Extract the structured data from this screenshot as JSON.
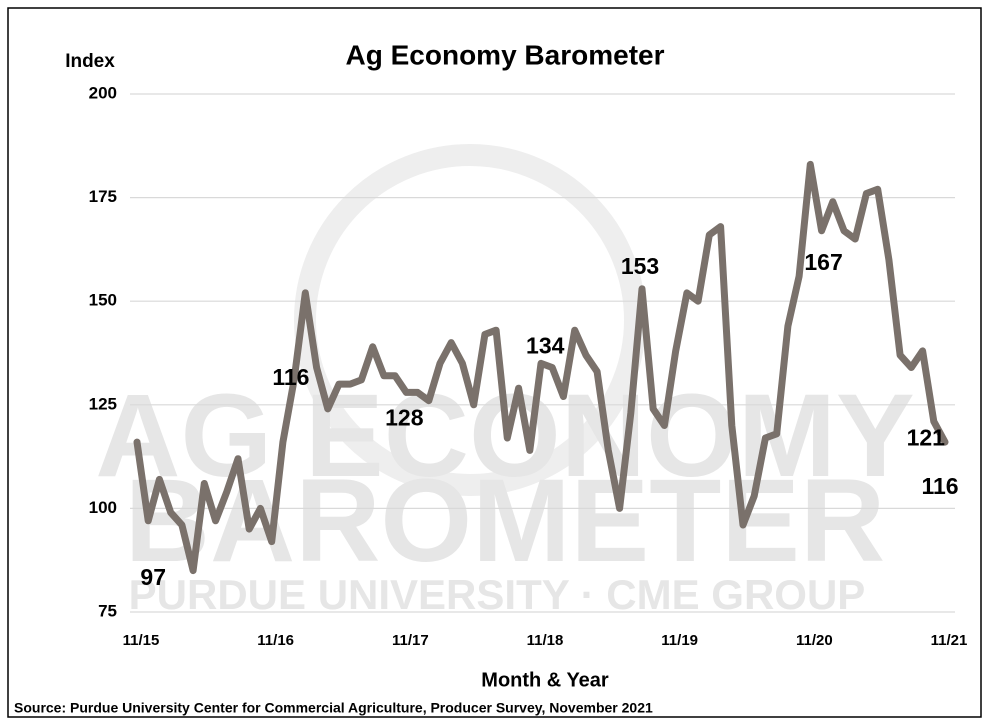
{
  "chart_data": {
    "type": "line",
    "title": "Ag Economy Barometer",
    "y_label": "Index",
    "x_label": "Month & Year",
    "source": "Source: Purdue University Center for Commercial Agriculture, Producer Survey, November 2021",
    "watermark": [
      "AG ECONOMY",
      "BAROMETER",
      "PURDUE UNIVERSITY · CME GROUP"
    ],
    "categories": [
      "11/15",
      null,
      null,
      null,
      null,
      null,
      null,
      null,
      null,
      null,
      null,
      null,
      "11/16",
      null,
      null,
      null,
      null,
      null,
      null,
      null,
      null,
      null,
      null,
      null,
      "11/17",
      null,
      null,
      null,
      null,
      null,
      null,
      null,
      null,
      null,
      null,
      null,
      "11/18",
      null,
      null,
      null,
      null,
      null,
      null,
      null,
      null,
      null,
      null,
      null,
      "11/19",
      null,
      null,
      null,
      null,
      null,
      null,
      null,
      null,
      null,
      null,
      null,
      "11/20",
      null,
      null,
      null,
      null,
      null,
      null,
      null,
      null,
      null,
      null,
      null,
      "11/21"
    ],
    "series": [
      {
        "name": "Index",
        "color": "#7a716b",
        "values": [
          116,
          97,
          107,
          99,
          96,
          85,
          106,
          97,
          104,
          112,
          95,
          100,
          92,
          116,
          131,
          152,
          134,
          124,
          130,
          130,
          131,
          139,
          132,
          132,
          128,
          128,
          126,
          135,
          140,
          135,
          125,
          142,
          143,
          117,
          129,
          114,
          135,
          134,
          127,
          143,
          137,
          133,
          114,
          100,
          123,
          153,
          124,
          120,
          138,
          152,
          150,
          166,
          168,
          120,
          96,
          103,
          117,
          118,
          144,
          156,
          183,
          167,
          174,
          167,
          165,
          176,
          177,
          160,
          137,
          134,
          138,
          121,
          116
        ],
        "value_labels": [
          null,
          "97",
          null,
          null,
          null,
          null,
          null,
          null,
          null,
          null,
          null,
          null,
          null,
          "116",
          null,
          null,
          null,
          null,
          null,
          null,
          null,
          null,
          null,
          null,
          "128",
          null,
          null,
          null,
          null,
          null,
          null,
          null,
          null,
          null,
          null,
          null,
          null,
          "134",
          null,
          null,
          null,
          null,
          null,
          null,
          null,
          "153",
          null,
          null,
          null,
          null,
          null,
          null,
          null,
          null,
          null,
          null,
          null,
          null,
          null,
          null,
          null,
          "167",
          null,
          null,
          null,
          null,
          null,
          null,
          null,
          null,
          null,
          "121",
          "116"
        ]
      }
    ],
    "ylim": [
      75,
      200
    ],
    "yticks": [
      75,
      100,
      125,
      150,
      175,
      200
    ],
    "grid": true
  }
}
